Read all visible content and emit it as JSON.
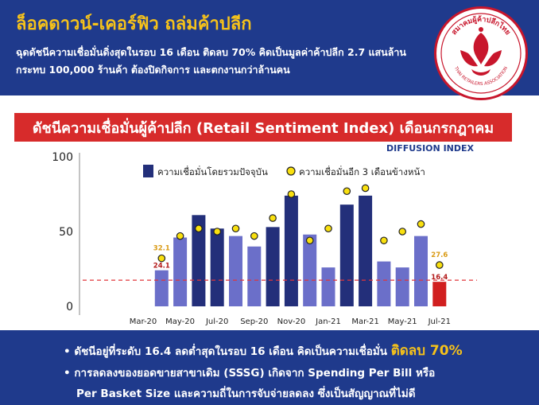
{
  "header": {
    "headline": "ล็อคดาวน์-เคอร์ฟิว ถล่มค้าปลีก",
    "subline_1": "ฉุดดัชนีความเชื่อมั่นดิ่งสุดในรอบ 16 เดือน ติดลบ 70% คิดเป็นมูลค่าค้าปลีก 2.7 แสนล้าน",
    "subline_2": "กระทบ 100,000 ร้านค้า ต้องปิดกิจการ และตกงานกว่าล้านคน"
  },
  "logo": {
    "text_th": "สมาคมผู้ค้าปลีกไทย",
    "text_en": "THAI RETAILERS ASSOCIATION"
  },
  "banner": {
    "title": "ดัชนีความเชื่อมั่นผู้ค้าปลีก (Retail Sentiment Index) เดือนกรกฎาคม"
  },
  "chart_data": {
    "type": "bar",
    "subtitle": "DIFFUSION INDEX",
    "categories": [
      "Mar-20",
      "Apr-20",
      "May-20",
      "Jun-20",
      "Jul-20",
      "Aug-20",
      "Sep-20",
      "Oct-20",
      "Nov-20",
      "Dec-20",
      "Jan-21",
      "Feb-21",
      "Mar-21",
      "Apr-21",
      "May-21",
      "Jun-21",
      "Jul-21"
    ],
    "x_tick_labels": [
      "Mar-20",
      "May-20",
      "Jul-20",
      "Sep-20",
      "Nov-20",
      "Jan-21",
      "Mar-21",
      "May-21",
      "Jul-21"
    ],
    "series": [
      {
        "name": "ความเชื่อมั่นโดยรวมปัจจุบัน",
        "kind": "bar",
        "values": [
          null,
          24.1,
          46,
          61,
          52,
          47,
          40,
          53,
          74,
          48,
          26,
          68,
          74,
          30,
          26,
          47,
          16.4
        ],
        "colors": [
          "",
          "#6b6fc9",
          "#6b6fc9",
          "#232f7a",
          "#232f7a",
          "#6b6fc9",
          "#6b6fc9",
          "#232f7a",
          "#232f7a",
          "#6b6fc9",
          "#6b6fc9",
          "#232f7a",
          "#232f7a",
          "#6b6fc9",
          "#6b6fc9",
          "#6b6fc9",
          "#d11f1f"
        ]
      },
      {
        "name": "ความเชื่อมั่นอีก 3 เดือนข้างหน้า",
        "kind": "point",
        "values": [
          null,
          32.1,
          47,
          52,
          50,
          52,
          47,
          59,
          75,
          44,
          52,
          77,
          79,
          44,
          50,
          55,
          27.6
        ]
      }
    ],
    "data_labels": {
      "bar_first": "24.1",
      "dot_first": "32.1",
      "bar_last": "16.4",
      "dot_last": "27.6"
    },
    "y_ticks": [
      "0",
      "50",
      "100"
    ],
    "ylim": [
      0,
      100
    ],
    "reference_line": 17.5,
    "grid": false,
    "legend_position": "top-center",
    "colors": {
      "bar_light": "#6b6fc9",
      "bar_dark": "#232f7a",
      "bar_latest": "#d11f1f",
      "dot_fill": "#f9e00f",
      "dot_stroke": "#222222",
      "reference": "#e0353a",
      "first_label": "#d99a14"
    }
  },
  "footer": {
    "line1_prefix": "• ดัชนีอยู่ที่ระดับ 16.4 ลดต่ำสุดในรอบ 16 เดือน คิดเป็นความเชื่อมั่น ",
    "line1_highlight": "ติดลบ 70%",
    "line2": "• การลดลงของยอดขายสาขาเดิม (SSSG) เกิดจาก Spending Per Bill หรือ",
    "line3": "Per Basket Size และความถี่ในการจับจ่ายลดลง ซึ่งเป็นสัญญาณที่ไม่ดี"
  }
}
